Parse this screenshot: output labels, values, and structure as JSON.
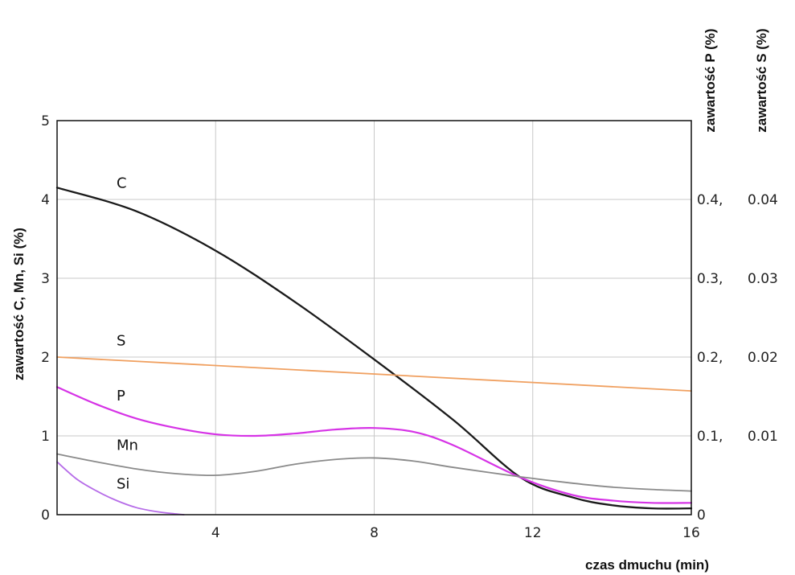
{
  "chart_data": {
    "type": "line",
    "xlabel": "czas dmuchu (min)",
    "ylabel_left": "zawartość C, Mn, Si (%)",
    "ylabel_right_p": "zawartość P (%)",
    "ylabel_right_s": "zawartość S (%)",
    "xlim": [
      0,
      16
    ],
    "ylim": [
      0,
      5
    ],
    "grid": true,
    "x_ticks": [
      "4",
      "8",
      "12",
      "16"
    ],
    "y_ticks_left": [
      "0",
      "1",
      "2",
      "3",
      "4",
      "5"
    ],
    "y_ticks_right": [
      {
        "y": 0,
        "p": "0",
        "s": ""
      },
      {
        "y": 1,
        "p": "0.1,",
        "s": "0.01"
      },
      {
        "y": 2,
        "p": "0.2,",
        "s": "0.02"
      },
      {
        "y": 3,
        "p": "0.3,",
        "s": "0.03"
      },
      {
        "y": 4,
        "p": "0.4,",
        "s": "0.04"
      }
    ],
    "series": [
      {
        "name": "C",
        "color": "#1a1a1a",
        "label_at": [
          1.5,
          4.15
        ],
        "x": [
          0,
          2,
          4,
          6,
          8,
          10,
          11.7,
          13,
          14,
          15,
          16
        ],
        "y": [
          4.15,
          3.85,
          3.35,
          2.7,
          1.97,
          1.2,
          0.47,
          0.22,
          0.12,
          0.08,
          0.08
        ]
      },
      {
        "name": "S",
        "color": "#f0a060",
        "label_at": [
          1.5,
          2.15
        ],
        "x": [
          0,
          16
        ],
        "y": [
          2.0,
          1.57
        ]
      },
      {
        "name": "P",
        "color": "#d633e6",
        "label_at": [
          1.5,
          1.45
        ],
        "x": [
          0,
          1,
          2,
          3,
          4,
          5,
          6,
          7,
          8,
          9,
          10,
          11.7,
          13,
          14,
          15,
          16
        ],
        "y": [
          1.62,
          1.4,
          1.22,
          1.1,
          1.02,
          1.0,
          1.03,
          1.08,
          1.1,
          1.05,
          0.88,
          0.47,
          0.25,
          0.18,
          0.15,
          0.15
        ]
      },
      {
        "name": "Mn",
        "color": "#8a8a8a",
        "label_at": [
          1.5,
          0.82
        ],
        "x": [
          0,
          1,
          2,
          3,
          4,
          5,
          6,
          7,
          8,
          9,
          10,
          11.7,
          13,
          14,
          15,
          16
        ],
        "y": [
          0.77,
          0.67,
          0.58,
          0.52,
          0.5,
          0.55,
          0.64,
          0.7,
          0.72,
          0.68,
          0.6,
          0.48,
          0.4,
          0.35,
          0.32,
          0.3
        ]
      },
      {
        "name": "Si",
        "color": "#b66ce8",
        "label_at": [
          1.5,
          0.33
        ],
        "x": [
          0,
          0.5,
          1,
          1.5,
          2,
          2.5,
          3,
          3.2
        ],
        "y": [
          0.67,
          0.45,
          0.3,
          0.18,
          0.09,
          0.04,
          0.01,
          0.0
        ]
      }
    ]
  }
}
